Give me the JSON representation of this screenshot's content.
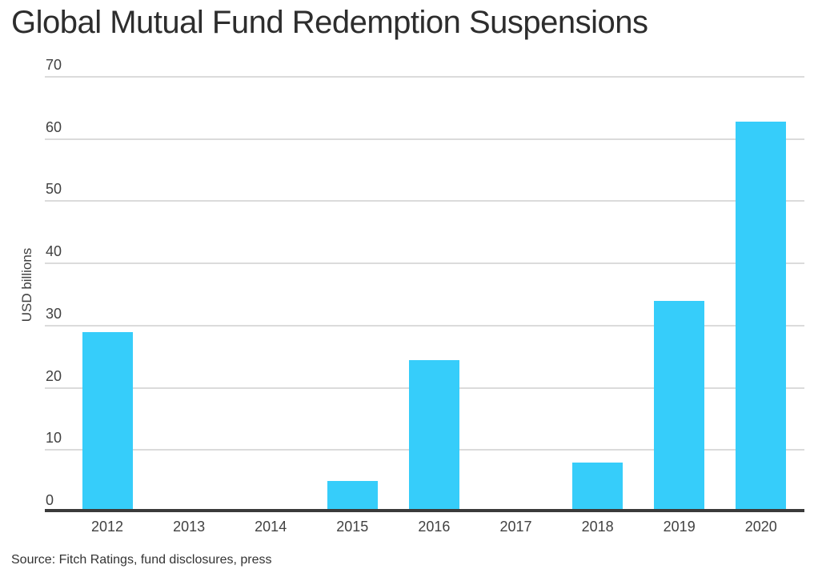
{
  "title": "Global Mutual Fund Redemption Suspensions",
  "source": "Source: Fitch Ratings, fund disclosures, press",
  "colors": {
    "bar": "#36cdfa",
    "gridline": "#dbdbdb",
    "axis_line": "#3a3a3a",
    "text": "#414141",
    "title_text": "#2d2d2d",
    "background": "#ffffff"
  },
  "chart_data": {
    "type": "bar",
    "title": "Global Mutual Fund Redemption Suspensions",
    "categories": [
      "2012",
      "2013",
      "2014",
      "2015",
      "2016",
      "2017",
      "2018",
      "2019",
      "2020"
    ],
    "values": [
      28.5,
      0,
      0,
      4.5,
      23.9,
      0,
      7.5,
      33.4,
      62.3
    ],
    "xlabel": "",
    "ylabel": "USD billions",
    "ylim": [
      0,
      70
    ],
    "yticks": [
      0,
      10,
      20,
      30,
      40,
      50,
      60,
      70
    ],
    "grid": true,
    "legend": false,
    "bar_color": "#36cdfa",
    "source": "Source: Fitch Ratings, fund disclosures, press"
  }
}
